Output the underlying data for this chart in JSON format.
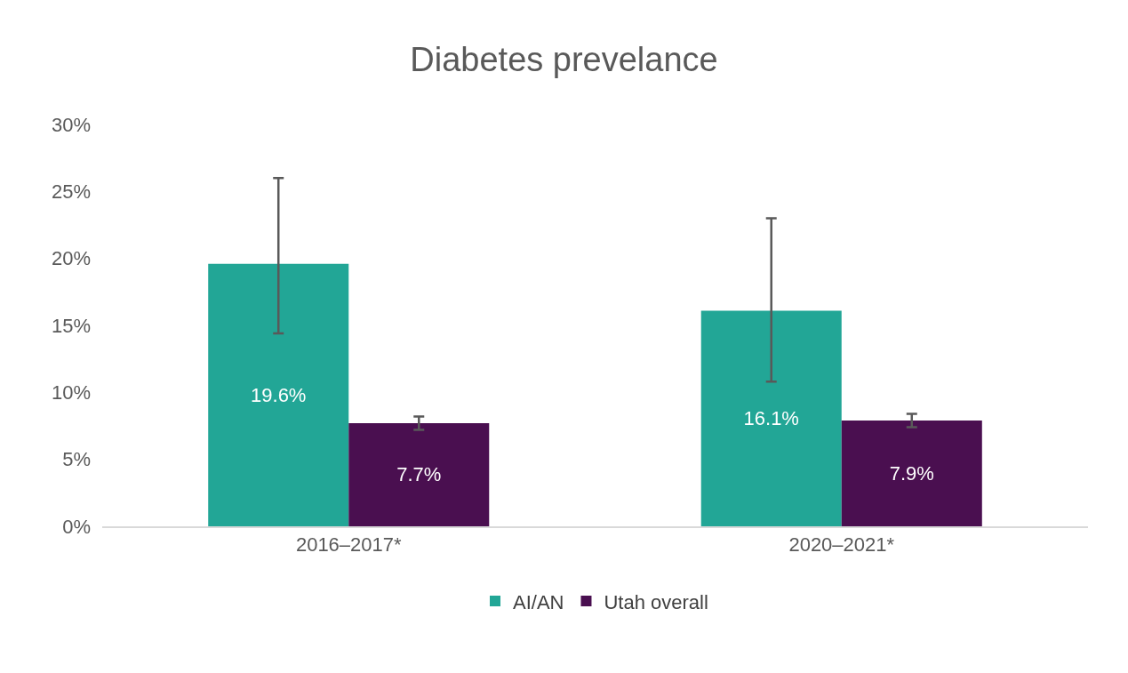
{
  "chart_data": {
    "type": "bar",
    "title": "Diabetes prevelance",
    "categories": [
      "2016–2017*",
      "2020–2021*"
    ],
    "series": [
      {
        "name": "AI/AN",
        "color": "#22a696",
        "values": [
          19.6,
          16.1
        ],
        "value_labels": [
          "19.6%",
          "16.1%"
        ],
        "errors": [
          [
            14.4,
            26.0
          ],
          [
            10.8,
            23.0
          ]
        ]
      },
      {
        "name": "Utah overall",
        "color": "#4a0f50",
        "values": [
          7.7,
          7.9
        ],
        "value_labels": [
          "7.7%",
          "7.9%"
        ],
        "errors": [
          [
            7.2,
            8.2
          ],
          [
            7.4,
            8.4
          ]
        ]
      }
    ],
    "ylim": [
      0,
      30
    ],
    "yticks": [
      {
        "value": 0,
        "label": "0%"
      },
      {
        "value": 5,
        "label": "5%"
      },
      {
        "value": 10,
        "label": "10%"
      },
      {
        "value": 15,
        "label": "15%"
      },
      {
        "value": 20,
        "label": "20%"
      },
      {
        "value": 25,
        "label": "25%"
      },
      {
        "value": 30,
        "label": "30%"
      }
    ],
    "grid": false,
    "legend": "bottom"
  }
}
